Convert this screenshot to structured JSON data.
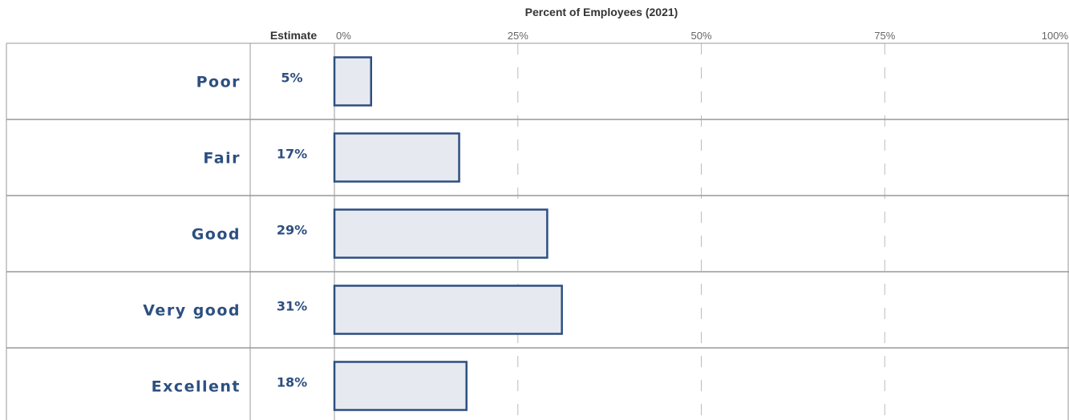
{
  "chart_data": {
    "type": "bar",
    "orientation": "horizontal",
    "title": "Percent of Employees (2021)",
    "estimate_header": "Estimate",
    "categories": [
      "Poor",
      "Fair",
      "Good",
      "Very good",
      "Excellent"
    ],
    "values": [
      5,
      17,
      29,
      31,
      18
    ],
    "value_labels": [
      "5%",
      "17%",
      "29%",
      "31%",
      "18%"
    ],
    "xlim": [
      0,
      100
    ],
    "ticks": [
      0,
      25,
      50,
      75,
      100
    ],
    "tick_labels": [
      "0%",
      "25%",
      "50%",
      "75%",
      "100%"
    ],
    "grid": true,
    "colors": {
      "bar_fill": "#e6e9ef",
      "bar_stroke": "#2d4f80",
      "text": "#2d4f80",
      "grid": "#bbbbbb"
    }
  }
}
